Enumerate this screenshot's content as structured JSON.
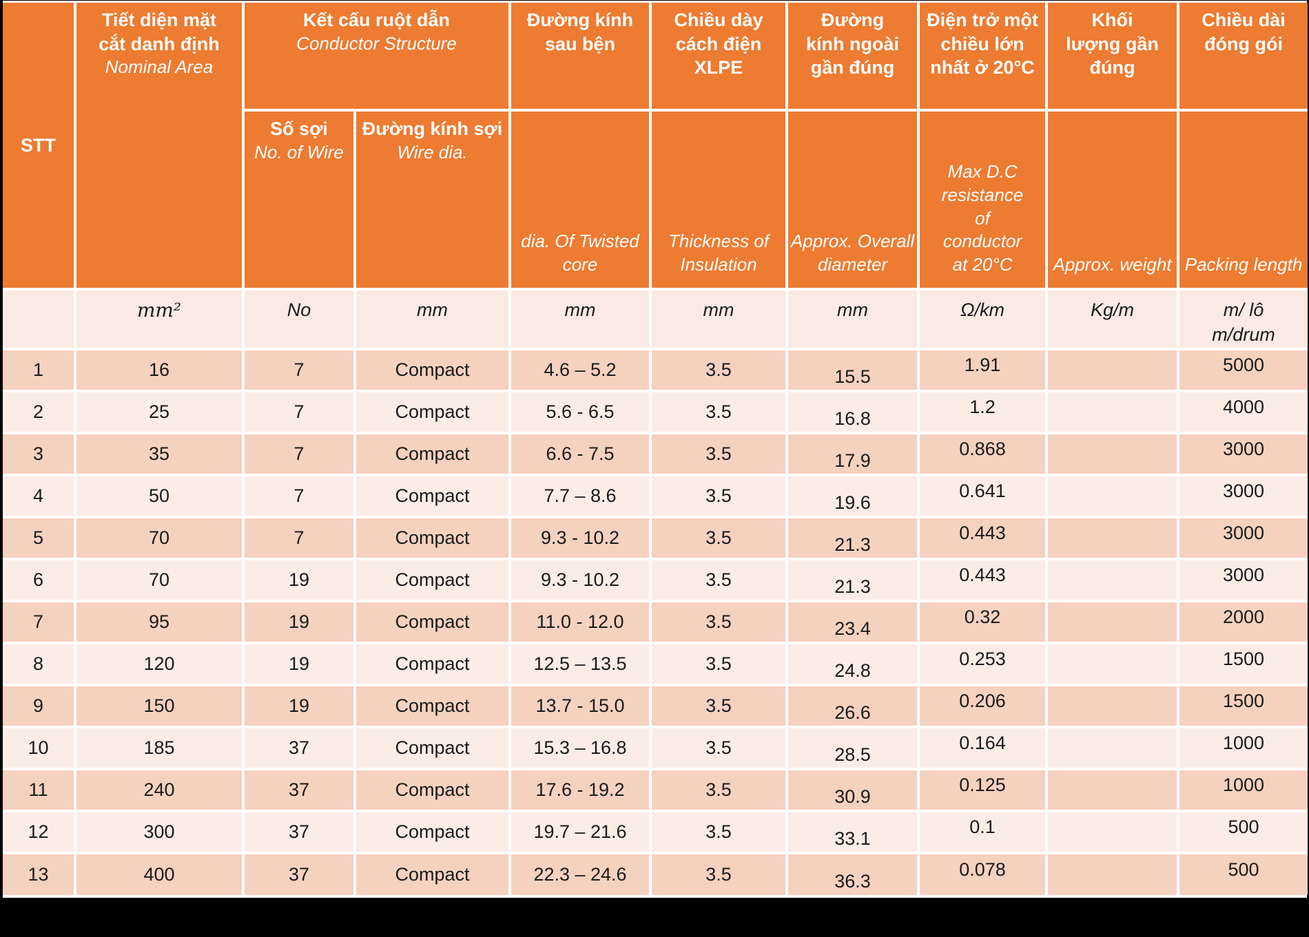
{
  "colors": {
    "orange": "#ED7B31",
    "band_dark": "#F5D1C0",
    "band_light": "#FCECE6",
    "units_bg": "#FAEAE3",
    "grid": "#FFFFFF",
    "text_dark": "#1A1A1A",
    "frame": "#000000"
  },
  "header": {
    "stt": "STT",
    "nominal_area": {
      "vn": "Tiết diện mặt cắt danh định",
      "en": "Nominal Area"
    },
    "conductor_structure": {
      "vn": "Kết cấu ruột dẫn",
      "en": "Conductor Structure"
    },
    "no_of_wire": {
      "vn": "Số sợi",
      "en": "No. of Wire"
    },
    "wire_dia": {
      "vn": "Đường kính sợi",
      "en": "Wire dia."
    },
    "twisted_core_dia": {
      "vn": "Đường kính sau bện",
      "en": "dia. Of Twisted core"
    },
    "insulation_thickness": {
      "vn": "Chiều dày cách điện XLPE",
      "en": "Thickness of Insulation"
    },
    "overall_diameter": {
      "vn": "Đường kính ngoài gần đúng",
      "en": "Approx. Overall diameter"
    },
    "dc_resistance": {
      "vn": "Điện trở một chiều lớn nhất ở 20°C",
      "en": "Max D.C resistance of conductor at 20°C"
    },
    "approx_weight": {
      "vn": "Khối lượng gần đúng",
      "en": "Approx. weight"
    },
    "packing_length": {
      "vn": "Chiều dài đóng gói",
      "en": "Packing length"
    }
  },
  "units": {
    "stt": "",
    "nominal_area": "mm²",
    "no_of_wire": "No",
    "wire_dia": "mm",
    "twisted_core_dia": "mm",
    "insulation_thickness": "mm",
    "overall_diameter": "mm",
    "dc_resistance": "Ω/km",
    "approx_weight": "Kg/m",
    "packing_length_line1": "m/ lô",
    "packing_length_line2": "m/drum"
  },
  "rows": [
    {
      "stt": "1",
      "nominal_area": "16",
      "no_of_wire": "7",
      "structure": "Compact",
      "twisted_core_dia": "4.6 – 5.2",
      "insulation_thickness": "3.5",
      "overall_diameter": "15.5",
      "dc_resistance": "1.91",
      "approx_weight": "",
      "packing_length": "5000"
    },
    {
      "stt": "2",
      "nominal_area": "25",
      "no_of_wire": "7",
      "structure": "Compact",
      "twisted_core_dia": "5.6 - 6.5",
      "insulation_thickness": "3.5",
      "overall_diameter": "16.8",
      "dc_resistance": "1.2",
      "approx_weight": "",
      "packing_length": "4000"
    },
    {
      "stt": "3",
      "nominal_area": "35",
      "no_of_wire": "7",
      "structure": "Compact",
      "twisted_core_dia": "6.6 - 7.5",
      "insulation_thickness": "3.5",
      "overall_diameter": "17.9",
      "dc_resistance": "0.868",
      "approx_weight": "",
      "packing_length": "3000"
    },
    {
      "stt": "4",
      "nominal_area": "50",
      "no_of_wire": "7",
      "structure": "Compact",
      "twisted_core_dia": "7.7 – 8.6",
      "insulation_thickness": "3.5",
      "overall_diameter": "19.6",
      "dc_resistance": "0.641",
      "approx_weight": "",
      "packing_length": "3000"
    },
    {
      "stt": "5",
      "nominal_area": "70",
      "no_of_wire": "7",
      "structure": "Compact",
      "twisted_core_dia": "9.3 - 10.2",
      "insulation_thickness": "3.5",
      "overall_diameter": "21.3",
      "dc_resistance": "0.443",
      "approx_weight": "",
      "packing_length": "3000"
    },
    {
      "stt": "6",
      "nominal_area": "70",
      "no_of_wire": "19",
      "structure": "Compact",
      "twisted_core_dia": "9.3 - 10.2",
      "insulation_thickness": "3.5",
      "overall_diameter": "21.3",
      "dc_resistance": "0.443",
      "approx_weight": "",
      "packing_length": "3000"
    },
    {
      "stt": "7",
      "nominal_area": "95",
      "no_of_wire": "19",
      "structure": "Compact",
      "twisted_core_dia": "11.0 - 12.0",
      "insulation_thickness": "3.5",
      "overall_diameter": "23.4",
      "dc_resistance": "0.32",
      "approx_weight": "",
      "packing_length": "2000"
    },
    {
      "stt": "8",
      "nominal_area": "120",
      "no_of_wire": "19",
      "structure": "Compact",
      "twisted_core_dia": "12.5 – 13.5",
      "insulation_thickness": "3.5",
      "overall_diameter": "24.8",
      "dc_resistance": "0.253",
      "approx_weight": "",
      "packing_length": "1500"
    },
    {
      "stt": "9",
      "nominal_area": "150",
      "no_of_wire": "19",
      "structure": "Compact",
      "twisted_core_dia": "13.7 - 15.0",
      "insulation_thickness": "3.5",
      "overall_diameter": "26.6",
      "dc_resistance": "0.206",
      "approx_weight": "",
      "packing_length": "1500"
    },
    {
      "stt": "10",
      "nominal_area": "185",
      "no_of_wire": "37",
      "structure": "Compact",
      "twisted_core_dia": "15.3 – 16.8",
      "insulation_thickness": "3.5",
      "overall_diameter": "28.5",
      "dc_resistance": "0.164",
      "approx_weight": "",
      "packing_length": "1000"
    },
    {
      "stt": "11",
      "nominal_area": "240",
      "no_of_wire": "37",
      "structure": "Compact",
      "twisted_core_dia": "17.6 - 19.2",
      "insulation_thickness": "3.5",
      "overall_diameter": "30.9",
      "dc_resistance": "0.125",
      "approx_weight": "",
      "packing_length": "1000"
    },
    {
      "stt": "12",
      "nominal_area": "300",
      "no_of_wire": "37",
      "structure": "Compact",
      "twisted_core_dia": "19.7 – 21.6",
      "insulation_thickness": "3.5",
      "overall_diameter": "33.1",
      "dc_resistance": "0.1",
      "approx_weight": "",
      "packing_length": "500"
    },
    {
      "stt": "13",
      "nominal_area": "400",
      "no_of_wire": "37",
      "structure": "Compact",
      "twisted_core_dia": "22.3 – 24.6",
      "insulation_thickness": "3.5",
      "overall_diameter": "36.3",
      "dc_resistance": "0.078",
      "approx_weight": "",
      "packing_length": "500"
    }
  ]
}
